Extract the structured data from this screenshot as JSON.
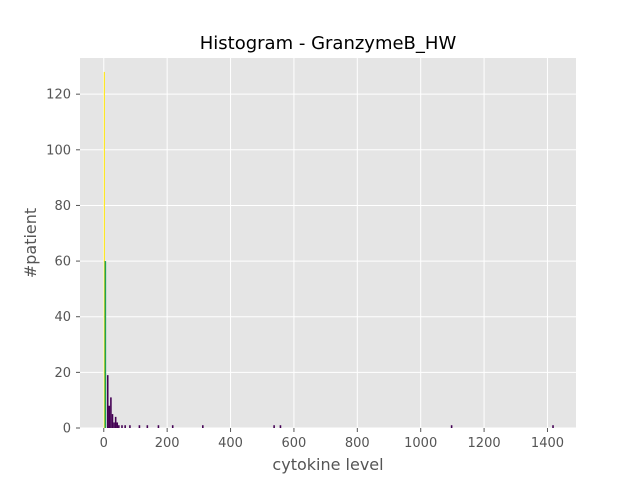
{
  "chart_data": {
    "type": "bar",
    "title": "Histogram - GranzymeB_HW",
    "xlabel": "cytokine level",
    "ylabel": "#patient",
    "xlim": [
      -75,
      1490
    ],
    "ylim": [
      0,
      133
    ],
    "xticks": [
      0,
      200,
      400,
      600,
      800,
      1000,
      1200,
      1400
    ],
    "yticks": [
      0,
      20,
      40,
      60,
      80,
      100,
      120
    ],
    "grid": true,
    "background": "#e5e5e5",
    "series": [
      {
        "color": "#fde725",
        "bins": [
          {
            "x0": 0,
            "x1": 2.5,
            "count": 128
          }
        ]
      },
      {
        "color": "#21a055",
        "bins": [
          {
            "x0": 2.5,
            "x1": 7.5,
            "count": 60
          }
        ]
      },
      {
        "color": "#440154",
        "bins": [
          {
            "x0": 10,
            "x1": 15,
            "count": 19
          },
          {
            "x0": 15,
            "x1": 20,
            "count": 8
          },
          {
            "x0": 20,
            "x1": 25,
            "count": 11
          },
          {
            "x0": 25,
            "x1": 30,
            "count": 5
          },
          {
            "x0": 30,
            "x1": 35,
            "count": 2
          },
          {
            "x0": 35,
            "x1": 40,
            "count": 4
          },
          {
            "x0": 40,
            "x1": 45,
            "count": 2
          },
          {
            "x0": 45,
            "x1": 50,
            "count": 1
          },
          {
            "x0": 55,
            "x1": 60,
            "count": 1
          },
          {
            "x0": 65,
            "x1": 70,
            "count": 1
          },
          {
            "x0": 80,
            "x1": 85,
            "count": 1
          },
          {
            "x0": 110,
            "x1": 115,
            "count": 1
          },
          {
            "x0": 135,
            "x1": 140,
            "count": 1
          },
          {
            "x0": 170,
            "x1": 175,
            "count": 1
          },
          {
            "x0": 215,
            "x1": 220,
            "count": 1
          },
          {
            "x0": 310,
            "x1": 315,
            "count": 1
          },
          {
            "x0": 535,
            "x1": 540,
            "count": 1
          },
          {
            "x0": 555,
            "x1": 560,
            "count": 1
          },
          {
            "x0": 1095,
            "x1": 1100,
            "count": 1
          },
          {
            "x0": 1415,
            "x1": 1420,
            "count": 1
          }
        ]
      }
    ]
  }
}
